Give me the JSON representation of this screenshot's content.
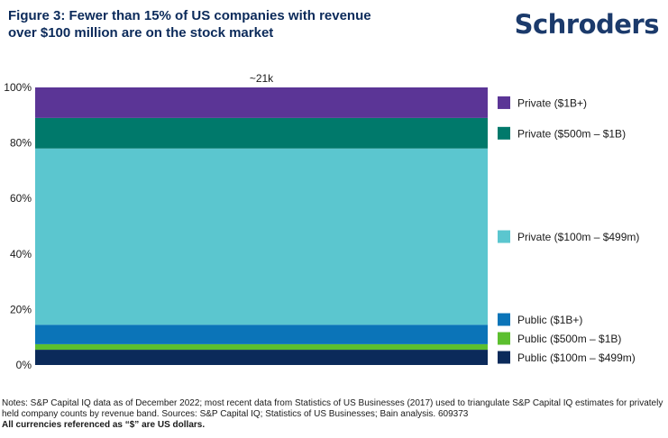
{
  "title": "Figure 3: Fewer than 15% of US companies with revenue over $100 million are on the stock market",
  "brand": "Schroders",
  "notes": "Notes: S&P Capital IQ data as of December 2022; most recent data from Statistics of US Businesses (2017) used to triangulate S&P Capital IQ estimates for privately held company counts by revenue band. Sources: S&P Capital IQ; Statistics of US Businesses; Bain analysis. 609373",
  "currency_note": "All currencies referenced as “$” are US dollars.",
  "chart_data": {
    "type": "bar",
    "stacked": true,
    "normalized": true,
    "categories": [
      ""
    ],
    "bar_label": "~21k",
    "ylim": [
      0,
      100
    ],
    "yticks": [
      0,
      20,
      40,
      60,
      80,
      100
    ],
    "ytick_labels": [
      "0%",
      "20%",
      "40%",
      "60%",
      "80%",
      "100%"
    ],
    "legend_position": "right",
    "series": [
      {
        "name": "Public ($100m – $499m)",
        "values": [
          5.5
        ],
        "color": "#0b2a5a"
      },
      {
        "name": "Public ($500m – $1B)",
        "values": [
          2
        ],
        "color": "#5cbf2e"
      },
      {
        "name": "Public ($1B+)",
        "values": [
          7
        ],
        "color": "#0b74b8"
      },
      {
        "name": "Private ($100m – $499m)",
        "values": [
          63.5
        ],
        "color": "#5bc6cf"
      },
      {
        "name": "Private ($500m – $1B)",
        "values": [
          11
        ],
        "color": "#00796b"
      },
      {
        "name": "Private ($1B+)",
        "values": [
          11
        ],
        "color": "#5b3596"
      }
    ]
  }
}
